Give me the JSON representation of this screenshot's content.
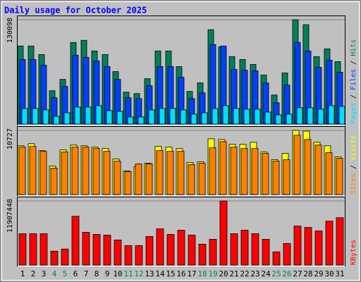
{
  "title": "Daily usage for October 2025",
  "legend_separator": " / ",
  "categories": [
    "1",
    "2",
    "3",
    "4",
    "5",
    "6",
    "7",
    "8",
    "9",
    "10",
    "11",
    "12",
    "13",
    "14",
    "15",
    "16",
    "17",
    "18",
    "19",
    "20",
    "21",
    "22",
    "23",
    "24",
    "25",
    "26",
    "27",
    "28",
    "29",
    "30",
    "31"
  ],
  "category_colors": [
    "#000000",
    "#000000",
    "#000000",
    "#00805c",
    "#00805c",
    "#000000",
    "#000000",
    "#000000",
    "#000000",
    "#000000",
    "#00805c",
    "#00805c",
    "#000000",
    "#000000",
    "#000000",
    "#000000",
    "#000000",
    "#00805c",
    "#00805c",
    "#000000",
    "#000000",
    "#000000",
    "#000000",
    "#000000",
    "#00805c",
    "#00805c",
    "#000000",
    "#000000",
    "#000000",
    "#000000",
    "#000000"
  ],
  "chart_data": [
    {
      "type": "bar",
      "ylim": [
        0,
        130098
      ],
      "yticks": [
        130098
      ],
      "series": [
        {
          "name": "Pages",
          "color": "#00e0ff",
          "values": [
            19470,
            19470,
            17700,
            9735,
            14160,
            21240,
            21240,
            23010,
            16815,
            15930,
            8850,
            8850,
            17700,
            19470,
            19470,
            17700,
            12390,
            14160,
            19470,
            23010,
            19470,
            18585,
            18585,
            15045,
            11505,
            12390,
            20355,
            20355,
            18585,
            23010,
            22125
          ]
        },
        {
          "name": "Files",
          "color": "#0040ff",
          "values": [
            80535,
            80535,
            73455,
            32745,
            46905,
            85845,
            83190,
            78765,
            71685,
            55755,
            32745,
            31860,
            47790,
            71685,
            71685,
            58410,
            31860,
            38940,
            99120,
            97350,
            68145,
            67260,
            66375,
            51330,
            26550,
            48675,
            101775,
            91155,
            70800,
            79650,
            64605
          ]
        },
        {
          "name": "Hits",
          "color": "#00805c",
          "values": [
            97350,
            97350,
            86730,
            41595,
            55755,
            101775,
            104430,
            91155,
            86730,
            65490,
            39825,
            38055,
            56640,
            91155,
            91155,
            71685,
            40710,
            51330,
            117705,
            96465,
            84075,
            80535,
            74340,
            61065,
            36285,
            63720,
            130098,
            123900,
            84075,
            93810,
            77880
          ]
        }
      ]
    },
    {
      "type": "bar",
      "ylim": [
        0,
        10727
      ],
      "yticks": [
        10727
      ],
      "series": [
        {
          "name": "Sites",
          "color": "#ff8000",
          "values": [
            7929,
            8045,
            7229,
            4431,
            7113,
            7929,
            7929,
            7696,
            7229,
            5597,
            3848,
            5130,
            5130,
            7346,
            7229,
            7229,
            5014,
            5247,
            7812,
            8862,
            7929,
            7696,
            7696,
            6879,
            5597,
            5830,
            9911,
            9211,
            8279,
            6996,
            6063
          ]
        },
        {
          "name": "Visits",
          "color": "#ffff00",
          "values": [
            8162,
            8512,
            7346,
            4781,
            7462,
            8279,
            8162,
            7929,
            7696,
            5947,
            3964,
            4664,
            5247,
            8045,
            7929,
            7696,
            5364,
            5480,
            9328,
            9211,
            8395,
            8395,
            8745,
            7113,
            5830,
            6879,
            10727,
            10611,
            8745,
            8162,
            6296
          ]
        }
      ]
    },
    {
      "type": "bar",
      "ylim": [
        0,
        11907448
      ],
      "yticks": [
        11907448
      ],
      "series": [
        {
          "name": "KBytes",
          "color": "#ff0000",
          "values": [
            5824305,
            5824305,
            5824305,
            2588580,
            2976867,
            9060030,
            6083163,
            5694876,
            5565447,
            4659444,
            3624012,
            3624012,
            5306589,
            6730308,
            5694876,
            6471450,
            5565447,
            3882870,
            4788873,
            11907448,
            5824305,
            6471450,
            5824305,
            4788873,
            2459151,
            4012299,
            7248024,
            6989166,
            6342021,
            8153937,
            8800172
          ]
        }
      ]
    }
  ]
}
